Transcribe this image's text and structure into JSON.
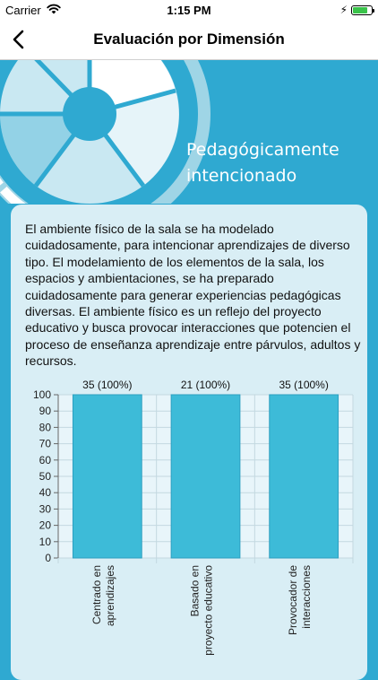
{
  "status_bar": {
    "carrier": "Carrier",
    "time": "1:15 PM",
    "battery_level": 0.8,
    "battery_color": "#3ac34a"
  },
  "nav": {
    "title": "Evaluación por Dimensión",
    "back_icon": "chevron-left-icon"
  },
  "hero": {
    "title_line1": "Pedagógicamente",
    "title_line2": "intencionado"
  },
  "description": "El ambiente físico de la sala se ha modelado cuidadosamente, para intencionar aprendizajes de diverso tipo. El modelamiento de los elementos de la sala, los espacios y ambientaciones, se ha preparado cuidadosamente para generar experiencias pedagógicas diversas. El ambiente físico es un reflejo del proyecto educativo y busca provocar interacciones que potencien el proceso de enseñanza aprendizaje entre párvulos, adultos y recursos.",
  "colors": {
    "background": "#2fa9d1",
    "card": "#d9eef5",
    "bar": "#3dbbd8"
  },
  "chart_data": {
    "type": "bar",
    "categories": [
      "Centrado en aprendizajes",
      "Basado en proyecto educativo",
      "Provocador de interacciones"
    ],
    "category_lines": [
      [
        "Centrado en",
        "aprendizajes"
      ],
      [
        "Basado en",
        "proyecto educativo"
      ],
      [
        "Provocador de",
        "interacciones"
      ]
    ],
    "values": [
      100,
      100,
      100
    ],
    "data_labels": [
      "35 (100%)",
      "21 (100%)",
      "35 (100%)"
    ],
    "yticks": [
      0,
      10,
      20,
      30,
      40,
      50,
      60,
      70,
      80,
      90,
      100
    ],
    "ylim": [
      0,
      100
    ],
    "grid": true
  }
}
